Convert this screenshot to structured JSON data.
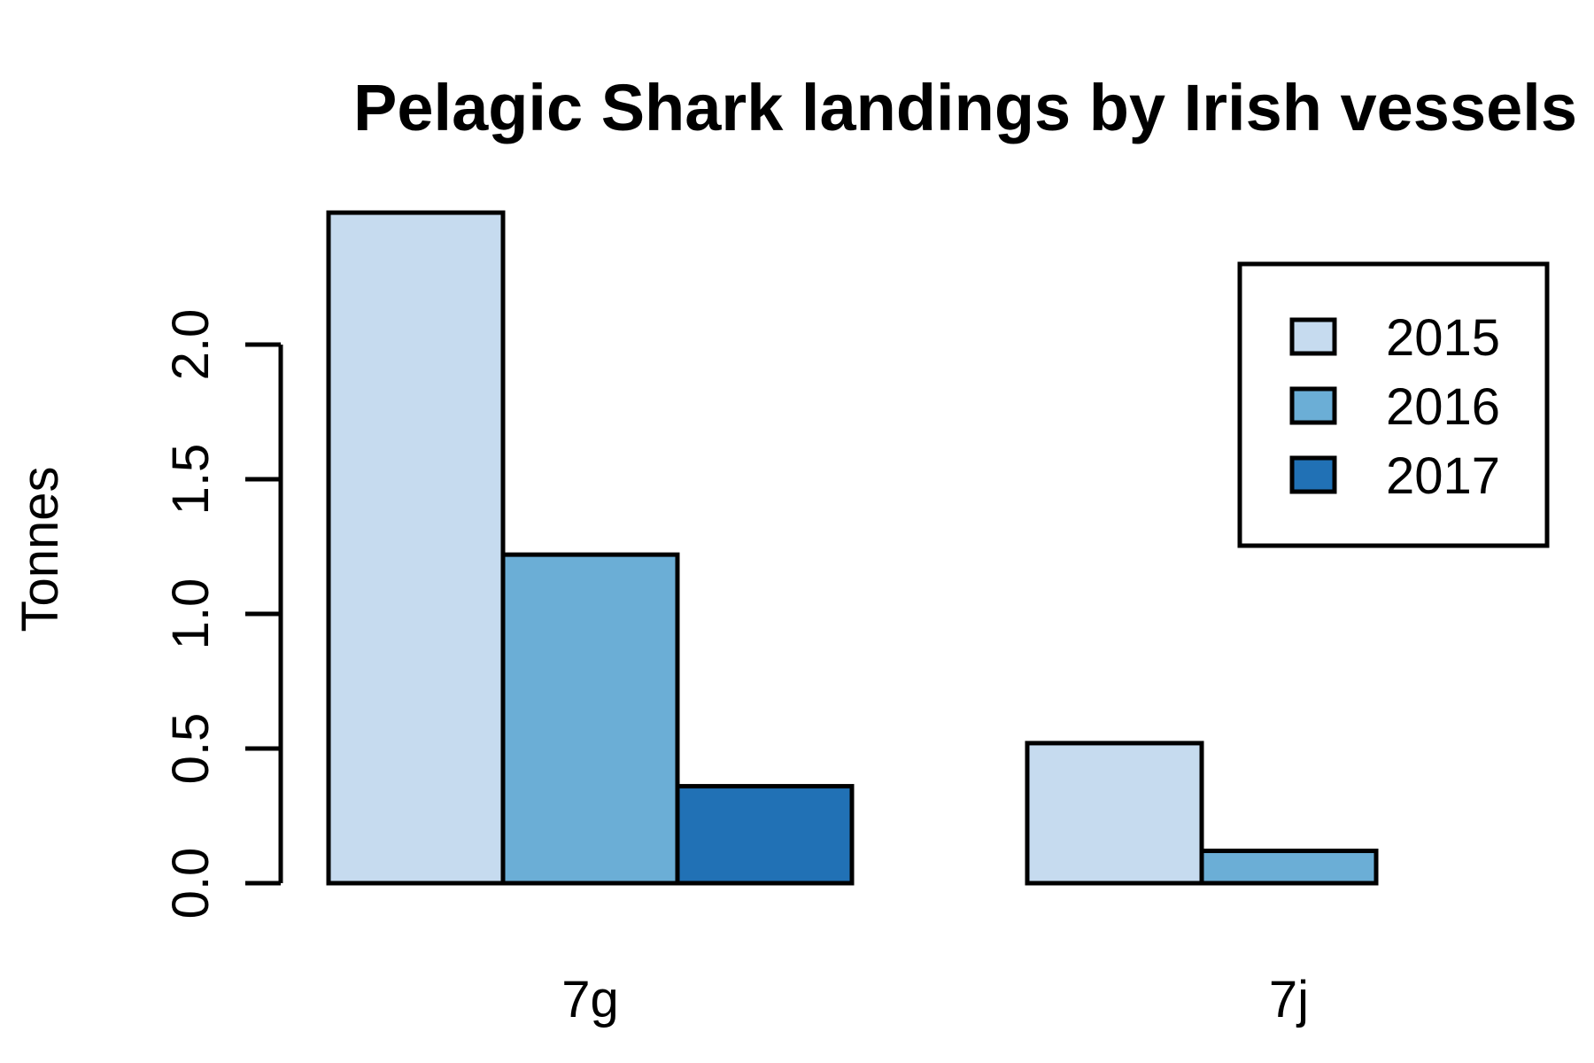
{
  "chart_data": {
    "type": "bar",
    "title": "Pelagic Shark landings by Irish vessels",
    "xlabel": "",
    "ylabel": "Tonnes",
    "categories": [
      "7g",
      "7j"
    ],
    "series": [
      {
        "name": "2015",
        "color": "#c6dbef",
        "values": [
          2.49,
          0.52
        ]
      },
      {
        "name": "2016",
        "color": "#6baed6",
        "values": [
          1.22,
          0.12
        ]
      },
      {
        "name": "2017",
        "color": "#2171b5",
        "values": [
          0.36,
          0.0
        ]
      }
    ],
    "yticks": [
      "0.0",
      "0.5",
      "1.0",
      "1.5",
      "2.0"
    ],
    "ytick_values": [
      0,
      0.5,
      1.0,
      1.5,
      2.0
    ],
    "ylim": [
      0,
      2.5
    ],
    "grid": false,
    "legend_position": "top-right",
    "bar_border_color": "#000000"
  }
}
